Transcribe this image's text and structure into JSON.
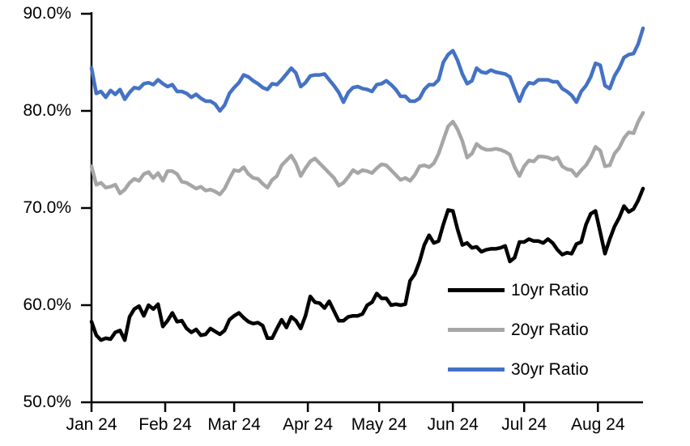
{
  "chart_data": {
    "type": "line",
    "title": "",
    "grid": false,
    "background": "#ffffff",
    "axis_color": "#000000",
    "y_axis": {
      "min": 50,
      "max": 90,
      "tick_values": [
        50,
        60,
        70,
        80,
        90
      ],
      "tick_labels": [
        "50.0%",
        "60.0%",
        "70.0%",
        "80.0%",
        "90.0%"
      ]
    },
    "x_axis": {
      "total_days": 232,
      "tick_days": [
        0,
        31,
        60,
        91,
        121,
        152,
        182,
        213
      ],
      "tick_labels": [
        "Jan 24",
        "Feb 24",
        "Mar 24",
        "Apr 24",
        "May 24",
        "Jun 24",
        "Jul 24",
        "Aug 24"
      ]
    },
    "legend": {
      "position": "inside-middle-right"
    },
    "series": [
      {
        "name": "10yr Ratio",
        "color": "#000000",
        "values": [
          58.3,
          56.9,
          56.4,
          56.6,
          56.5,
          57.2,
          57.4,
          56.4,
          58.8,
          59.6,
          59.9,
          58.9,
          60.0,
          59.6,
          60.1,
          57.8,
          58.4,
          59.2,
          58.3,
          58.4,
          57.6,
          57.2,
          57.5,
          56.9,
          57.0,
          57.6,
          57.3,
          57.0,
          57.4,
          58.5,
          58.9,
          59.2,
          58.7,
          58.3,
          58.1,
          58.2,
          57.9,
          56.6,
          56.6,
          57.6,
          58.5,
          57.7,
          58.8,
          58.4,
          57.6,
          58.9,
          60.9,
          60.3,
          60.2,
          59.7,
          60.4,
          59.4,
          58.4,
          58.4,
          58.8,
          58.9,
          58.9,
          59.1,
          60.0,
          60.3,
          61.2,
          60.7,
          60.7,
          60.0,
          60.1,
          60.0,
          60.1,
          62.5,
          63.2,
          64.5,
          66.2,
          67.2,
          66.4,
          66.6,
          68.3,
          69.8,
          69.7,
          67.8,
          66.2,
          66.4,
          65.9,
          66.0,
          65.5,
          65.7,
          65.8,
          65.8,
          65.9,
          66.1,
          64.5,
          64.9,
          66.5,
          66.5,
          66.8,
          66.6,
          66.6,
          66.4,
          66.8,
          66.4,
          65.7,
          65.2,
          65.4,
          65.3,
          66.3,
          66.5,
          68.3,
          69.4,
          69.7,
          67.5,
          65.3,
          66.8,
          68.1,
          69.0,
          70.2,
          69.6,
          69.9,
          70.8,
          72.0
        ]
      },
      {
        "name": "20yr Ratio",
        "color": "#A6A6A6",
        "values": [
          74.3,
          72.4,
          72.6,
          72.1,
          72.2,
          72.4,
          71.5,
          71.9,
          72.6,
          73.0,
          72.8,
          73.5,
          73.7,
          73.1,
          73.6,
          72.8,
          73.8,
          73.8,
          73.5,
          72.7,
          72.6,
          72.3,
          72.0,
          72.2,
          71.8,
          71.9,
          71.7,
          71.4,
          72.0,
          73.0,
          73.9,
          73.8,
          74.2,
          73.5,
          73.1,
          73.0,
          72.5,
          72.1,
          72.9,
          73.3,
          74.4,
          74.9,
          75.4,
          74.6,
          73.3,
          74.1,
          74.8,
          75.1,
          74.6,
          74.1,
          73.6,
          73.1,
          72.3,
          72.6,
          73.2,
          73.9,
          73.6,
          73.9,
          73.8,
          73.6,
          74.1,
          74.5,
          74.4,
          73.9,
          73.4,
          72.9,
          73.1,
          72.8,
          73.4,
          74.3,
          74.4,
          74.2,
          74.6,
          75.6,
          77.0,
          78.4,
          78.9,
          78.1,
          76.9,
          75.2,
          75.6,
          76.6,
          76.2,
          76.0,
          76.0,
          76.1,
          76.0,
          75.8,
          75.5,
          74.2,
          73.3,
          74.3,
          74.9,
          74.8,
          75.3,
          75.3,
          75.2,
          75.0,
          75.2,
          74.3,
          74.0,
          73.9,
          73.3,
          73.9,
          74.4,
          75.2,
          76.3,
          75.9,
          74.3,
          74.4,
          75.6,
          76.2,
          77.2,
          77.8,
          77.7,
          78.9,
          79.8
        ]
      },
      {
        "name": "30yr Ratio",
        "color": "#4472C4",
        "values": [
          84.4,
          81.8,
          82.0,
          81.4,
          82.1,
          81.7,
          82.2,
          81.2,
          81.9,
          82.4,
          82.3,
          82.8,
          82.9,
          82.7,
          83.2,
          82.8,
          82.5,
          82.7,
          82.0,
          82.0,
          81.8,
          81.4,
          81.7,
          81.3,
          81.0,
          81.0,
          80.7,
          80.0,
          80.6,
          81.8,
          82.4,
          82.9,
          83.7,
          83.5,
          83.1,
          82.8,
          82.4,
          82.2,
          82.8,
          82.7,
          83.2,
          83.8,
          84.4,
          83.9,
          82.5,
          82.9,
          83.6,
          83.7,
          83.7,
          83.8,
          83.2,
          82.6,
          81.9,
          80.9,
          81.9,
          82.4,
          82.5,
          82.3,
          82.2,
          82.0,
          82.7,
          82.8,
          83.1,
          82.7,
          82.2,
          81.5,
          81.5,
          81.0,
          81.0,
          81.3,
          82.2,
          82.7,
          82.7,
          83.2,
          85.0,
          85.8,
          86.2,
          85.2,
          83.8,
          82.8,
          83.1,
          84.4,
          84.0,
          83.9,
          84.2,
          84.0,
          83.9,
          83.8,
          83.5,
          82.2,
          81.0,
          82.2,
          82.9,
          82.8,
          83.2,
          83.2,
          83.2,
          83.0,
          83.0,
          82.3,
          82.0,
          81.6,
          80.9,
          82.0,
          82.6,
          83.5,
          84.9,
          84.7,
          82.6,
          82.3,
          83.6,
          84.4,
          85.5,
          85.8,
          85.9,
          86.9,
          88.5
        ]
      }
    ]
  }
}
